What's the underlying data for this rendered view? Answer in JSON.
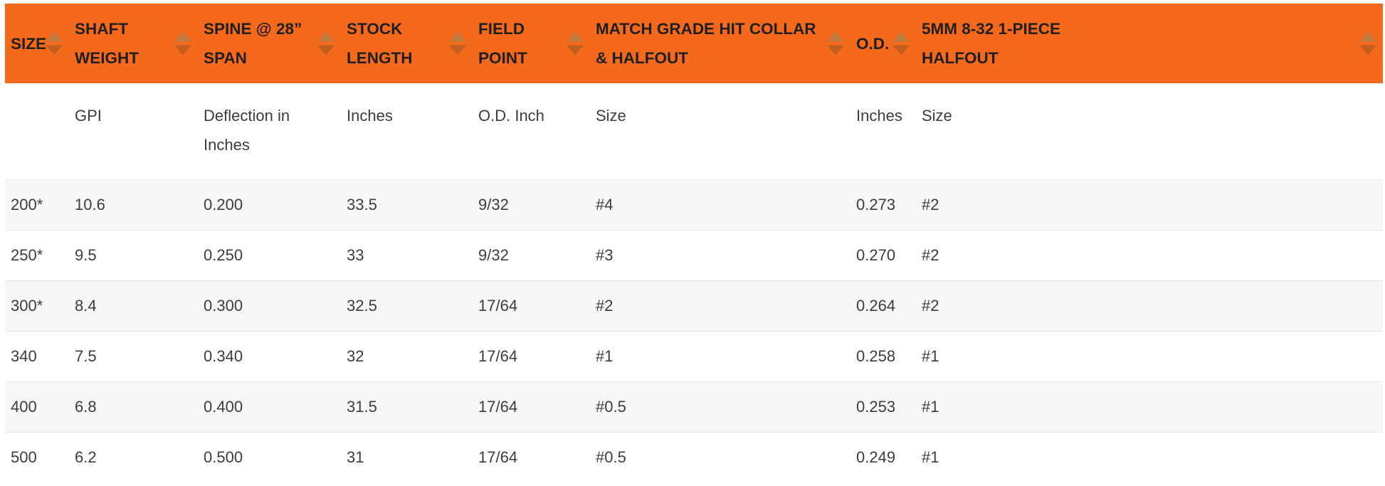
{
  "colors": {
    "header_bg": "#f5691d",
    "header_text": "#1f1f1f",
    "body_text": "#3c3c3c",
    "stripe_bg": "#f7f7f7",
    "row_border": "#e6e6e6",
    "sort_arrow_up": "#bf7b3e",
    "sort_arrow_down": "#c25e1e"
  },
  "table": {
    "columns": [
      {
        "id": "size",
        "label": "SIZE",
        "sub": ""
      },
      {
        "id": "shaft-weight",
        "label": "SHAFT WEIGHT",
        "sub": "GPI"
      },
      {
        "id": "spine",
        "label": "SPINE @ 28” SPAN",
        "sub": "Deflection in Inches"
      },
      {
        "id": "stock-length",
        "label": "STOCK LENGTH",
        "sub": "Inches"
      },
      {
        "id": "field-point",
        "label": "FIELD POINT",
        "sub": "O.D. Inch"
      },
      {
        "id": "match-grade",
        "label": "MATCH GRADE HIT COLLAR & HALFOUT",
        "sub": "Size"
      },
      {
        "id": "od",
        "label": "O.D.",
        "sub": "Inches"
      },
      {
        "id": "halfout",
        "label": "5MM 8-32 1-PIECE HALFOUT",
        "sub": "Size"
      }
    ],
    "rows": [
      [
        "200*",
        "10.6",
        "0.200",
        "33.5",
        "9/32",
        "#4",
        "0.273",
        "#2"
      ],
      [
        "250*",
        "9.5",
        "0.250",
        "33",
        "9/32",
        "#3",
        "0.270",
        "#2"
      ],
      [
        "300*",
        "8.4",
        "0.300",
        "32.5",
        "17/64",
        "#2",
        "0.264",
        "#2"
      ],
      [
        "340",
        "7.5",
        "0.340",
        "32",
        "17/64",
        "#1",
        "0.258",
        "#1"
      ],
      [
        "400",
        "6.8",
        "0.400",
        "31.5",
        "17/64",
        "#0.5",
        "0.253",
        "#1"
      ],
      [
        "500",
        "6.2",
        "0.500",
        "31",
        "17/64",
        "#0.5",
        "0.249",
        "#1"
      ]
    ]
  }
}
